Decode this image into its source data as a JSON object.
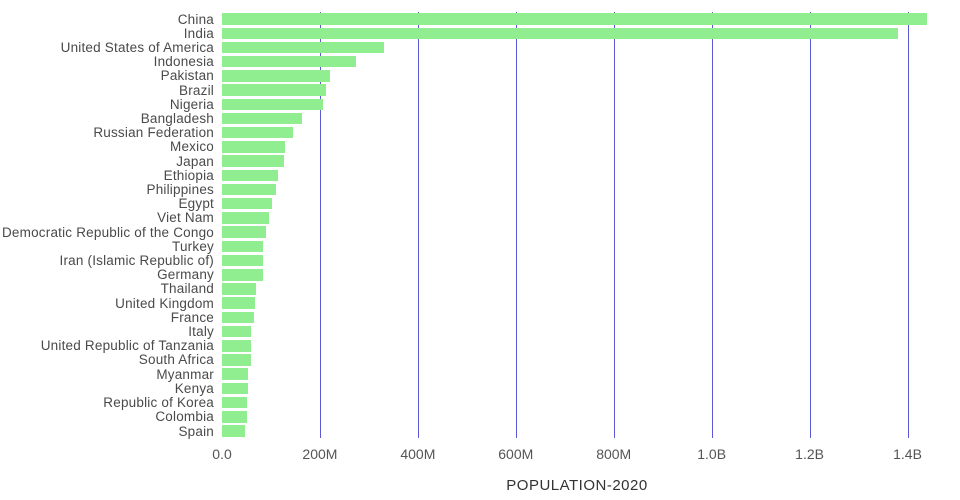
{
  "chart_data": {
    "type": "bar",
    "orientation": "horizontal",
    "title": "POPULATION-2020",
    "xlabel": "POPULATION-2020",
    "ylabel": "",
    "categories": [
      "China",
      "India",
      "United States of America",
      "Indonesia",
      "Pakistan",
      "Brazil",
      "Nigeria",
      "Bangladesh",
      "Russian Federation",
      "Mexico",
      "Japan",
      "Ethiopia",
      "Philippines",
      "Egypt",
      "Viet Nam",
      "Democratic Republic of the Congo",
      "Turkey",
      "Iran (Islamic Republic of)",
      "Germany",
      "Thailand",
      "United Kingdom",
      "France",
      "Italy",
      "United Republic of Tanzania",
      "South Africa",
      "Myanmar",
      "Kenya",
      "Republic of Korea",
      "Colombia",
      "Spain"
    ],
    "values_millions": [
      1439,
      1380,
      331,
      273,
      220,
      212,
      206,
      164,
      146,
      129,
      126,
      115,
      110,
      102,
      97,
      90,
      84,
      84,
      84,
      70,
      68,
      65,
      60,
      60,
      59,
      54,
      54,
      51,
      51,
      47
    ],
    "x_ticks": [
      "0.0",
      "200M",
      "400M",
      "600M",
      "800M",
      "1.0B",
      "1.2B",
      "1.4B"
    ],
    "x_tick_values_millions": [
      0,
      200,
      400,
      600,
      800,
      1000,
      1200,
      1400
    ],
    "xmax_millions": 1450,
    "grid": true,
    "legend": "none",
    "bar_color": "#90ee90",
    "gridline_color": "#5a5ad2"
  }
}
